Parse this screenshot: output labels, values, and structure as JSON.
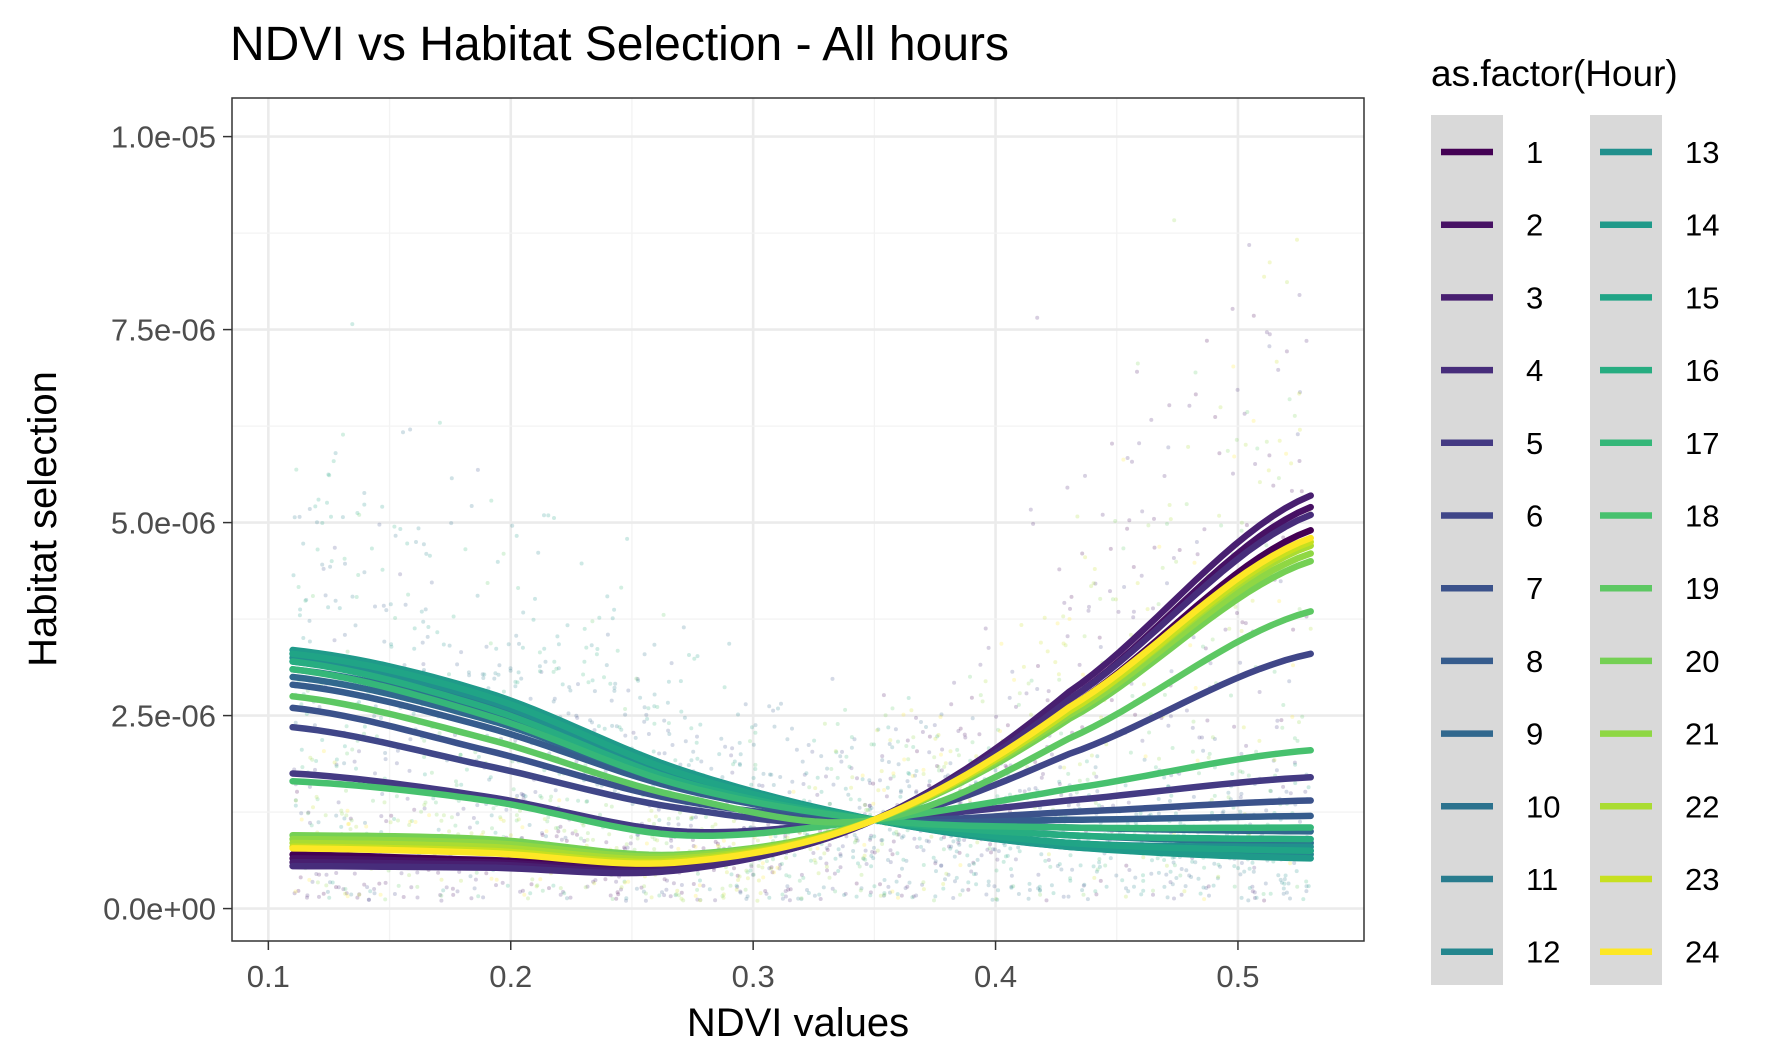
{
  "chart_data": {
    "type": "scatter",
    "title": "NDVI vs Habitat Selection - All hours",
    "xlabel": "NDVI values",
    "ylabel": "Habitat selection",
    "xlim": [
      0.085,
      0.552
    ],
    "ylim": [
      -4.2e-07,
      1.05e-05
    ],
    "x_ticks": [
      0.1,
      0.2,
      0.3,
      0.4,
      0.5
    ],
    "x_tick_labels": [
      "0.1",
      "0.2",
      "0.3",
      "0.4",
      "0.5"
    ],
    "y_ticks": [
      0,
      2.5e-06,
      5e-06,
      7.5e-06,
      1e-05
    ],
    "y_tick_labels": [
      "0.0e+00",
      "2.5e-06",
      "5.0e-06",
      "7.5e-06",
      "1.0e-05"
    ],
    "grid": true,
    "legend": {
      "title": "as.factor(Hour)",
      "position": "right",
      "columns": 2,
      "entries": [
        "1",
        "2",
        "3",
        "4",
        "5",
        "6",
        "7",
        "8",
        "9",
        "10",
        "11",
        "12",
        "13",
        "14",
        "15",
        "16",
        "17",
        "18",
        "19",
        "20",
        "21",
        "22",
        "23",
        "24"
      ]
    },
    "colors": [
      "#440154",
      "#471164",
      "#481f70",
      "#472d7b",
      "#443a83",
      "#404688",
      "#3b528b",
      "#365c8d",
      "#31688e",
      "#2c728e",
      "#287c8e",
      "#24868e",
      "#21908d",
      "#1f9a8a",
      "#20a486",
      "#27ad81",
      "#35b779",
      "#47c16e",
      "#5dc863",
      "#75d054",
      "#8fd744",
      "#aadc32",
      "#c7e020",
      "#fde725"
    ],
    "curve_x": [
      0.11,
      0.19,
      0.27,
      0.35,
      0.43,
      0.53
    ],
    "series": [
      {
        "name": "1",
        "y": [
          7e-07,
          6.3e-07,
          5.8e-07,
          1.15e-06,
          2.6e-06,
          4.9e-06
        ]
      },
      {
        "name": "2",
        "y": [
          6.5e-07,
          6e-07,
          5.5e-07,
          1.15e-06,
          2.7e-06,
          5.2e-06
        ]
      },
      {
        "name": "3",
        "y": [
          6e-07,
          5.7e-07,
          5.2e-07,
          1.15e-06,
          2.8e-06,
          5.35e-06
        ]
      },
      {
        "name": "4",
        "y": [
          5.5e-07,
          5.3e-07,
          5e-07,
          1.15e-06,
          2.7e-06,
          5.1e-06
        ]
      },
      {
        "name": "5",
        "y": [
          1.75e-06,
          1.45e-06,
          1e-06,
          1.15e-06,
          1.4e-06,
          1.7e-06
        ]
      },
      {
        "name": "6",
        "y": [
          2.35e-06,
          1.85e-06,
          1.3e-06,
          1.15e-06,
          2e-06,
          3.3e-06
        ]
      },
      {
        "name": "7",
        "y": [
          2.6e-06,
          2.05e-06,
          1.4e-06,
          1.15e-06,
          1.25e-06,
          1.4e-06
        ]
      },
      {
        "name": "8",
        "y": [
          2.9e-06,
          2.35e-06,
          1.55e-06,
          1.15e-06,
          1.15e-06,
          1.2e-06
        ]
      },
      {
        "name": "9",
        "y": [
          3e-06,
          2.45e-06,
          1.6e-06,
          1.15e-06,
          1.05e-06,
          1e-06
        ]
      },
      {
        "name": "10",
        "y": [
          3.1e-06,
          2.55e-06,
          1.65e-06,
          1.15e-06,
          9.5e-07,
          8.5e-07
        ]
      },
      {
        "name": "11",
        "y": [
          3.2e-06,
          2.65e-06,
          1.7e-06,
          1.15e-06,
          8.5e-07,
          7.5e-07
        ]
      },
      {
        "name": "12",
        "y": [
          3.3e-06,
          2.75e-06,
          1.75e-06,
          1.15e-06,
          8e-07,
          7e-07
        ]
      },
      {
        "name": "13",
        "y": [
          3.25e-06,
          2.7e-06,
          1.7e-06,
          1.15e-06,
          8.5e-07,
          8e-07
        ]
      },
      {
        "name": "14",
        "y": [
          3.35e-06,
          2.8e-06,
          1.8e-06,
          1.15e-06,
          8e-07,
          6.5e-07
        ]
      },
      {
        "name": "15",
        "y": [
          3.3e-06,
          2.75e-06,
          1.75e-06,
          1.15e-06,
          8.5e-07,
          7.5e-07
        ]
      },
      {
        "name": "16",
        "y": [
          3.2e-06,
          2.6e-06,
          1.65e-06,
          1.15e-06,
          9.5e-07,
          9e-07
        ]
      },
      {
        "name": "17",
        "y": [
          3.1e-06,
          2.5e-06,
          1.6e-06,
          1.15e-06,
          1.05e-06,
          1.05e-06
        ]
      },
      {
        "name": "18",
        "y": [
          1.65e-06,
          1.4e-06,
          9.5e-07,
          1.15e-06,
          1.55e-06,
          2.05e-06
        ]
      },
      {
        "name": "19",
        "y": [
          2.75e-06,
          2.2e-06,
          1.45e-06,
          1.15e-06,
          2.2e-06,
          3.85e-06
        ]
      },
      {
        "name": "20",
        "y": [
          9.5e-07,
          9e-07,
          7e-07,
          1.15e-06,
          2.45e-06,
          4.5e-06
        ]
      },
      {
        "name": "21",
        "y": [
          9e-07,
          8.5e-07,
          6.8e-07,
          1.15e-06,
          2.5e-06,
          4.6e-06
        ]
      },
      {
        "name": "22",
        "y": [
          8.5e-07,
          8e-07,
          6.5e-07,
          1.15e-06,
          2.55e-06,
          4.7e-06
        ]
      },
      {
        "name": "23",
        "y": [
          8e-07,
          7.5e-07,
          6.2e-07,
          1.15e-06,
          2.55e-06,
          4.75e-06
        ]
      },
      {
        "name": "24",
        "y": [
          7.8e-07,
          7.2e-07,
          6e-07,
          1.15e-06,
          2.6e-06,
          4.8e-06
        ]
      }
    ]
  }
}
